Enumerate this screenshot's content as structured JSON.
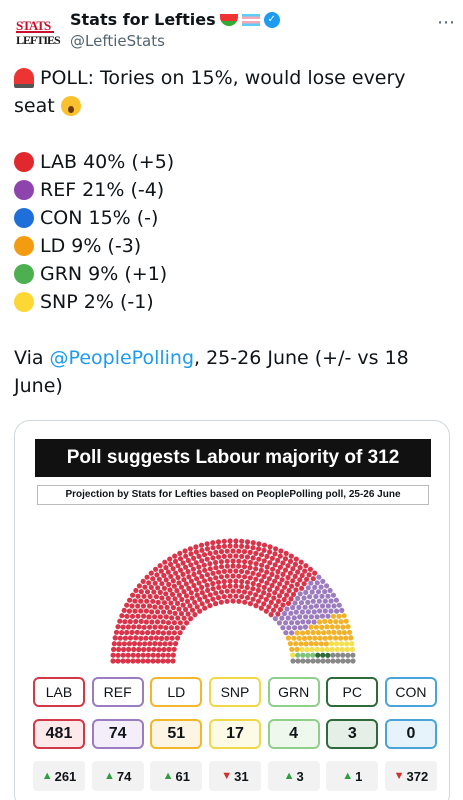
{
  "header": {
    "avatar_line1": "STATS",
    "avatar_line2": "LEFTIES",
    "name": "Stats for Lefties",
    "handle": "@LeftieStats",
    "menu": "⋯"
  },
  "tweet": {
    "line1": "POLL: Tories on 15%, would lose every",
    "line2": "seat",
    "results": [
      {
        "text": "LAB 40% (+5)",
        "color": "#e0282e"
      },
      {
        "text": "REF 21% (-4)",
        "color": "#8e44ad"
      },
      {
        "text": "CON 15% (-)",
        "color": "#1e6fd9"
      },
      {
        "text": "LD 9% (-3)",
        "color": "#f39c12"
      },
      {
        "text": "GRN 9% (+1)",
        "color": "#4caf50"
      },
      {
        "text": "SNP 2% (-1)",
        "color": "#fdd835"
      }
    ],
    "via_prefix": "Via ",
    "via_link": "@PeoplePolling",
    "via_suffix": ", 25-26 June (+/- vs 18",
    "via_line2": "June)"
  },
  "card": {
    "title": "Poll suggests Labour majority of 312",
    "subtitle": "Projection by Stats for Lefties based on PeoplePolling poll, 25-26 June",
    "parties": [
      {
        "name": "LAB",
        "seats": "481",
        "change": "261",
        "dir": "up",
        "color": "#d33847",
        "seat_color": "#d9344a",
        "seat_count": 481,
        "bg": "#fde8ea"
      },
      {
        "name": "REF",
        "seats": "74",
        "change": "74",
        "dir": "up",
        "color": "#9b7cc0",
        "seat_color": "#9c7bbf",
        "seat_count": 74,
        "bg": "#f3eef9"
      },
      {
        "name": "LD",
        "seats": "51",
        "change": "61",
        "dir": "up",
        "color": "#f2b72b",
        "seat_color": "#f2b22a",
        "seat_count": 51,
        "bg": "#fdf5e3"
      },
      {
        "name": "SNP",
        "seats": "17",
        "change": "31",
        "dir": "down",
        "color": "#efd84a",
        "seat_color": "#f4e04d",
        "seat_count": 17,
        "bg": "#fdfbe6"
      },
      {
        "name": "GRN",
        "seats": "4",
        "change": "3",
        "dir": "up",
        "color": "#8fcf8a",
        "seat_color": "#7cc47a",
        "seat_count": 4,
        "bg": "#eef8ed"
      },
      {
        "name": "PC",
        "seats": "3",
        "change": "1",
        "dir": "up",
        "color": "#2f6b3a",
        "seat_color": "#2f6b3a",
        "seat_count": 3,
        "bg": "#e6efe7"
      },
      {
        "name": "CON",
        "seats": "0",
        "change": "372",
        "dir": "down",
        "color": "#4aa3d9",
        "seat_color": "#4aa3d9",
        "seat_count": 0,
        "bg": "#e6f3fb"
      }
    ],
    "other_seats": {
      "count": 18,
      "color": "#888888"
    }
  }
}
